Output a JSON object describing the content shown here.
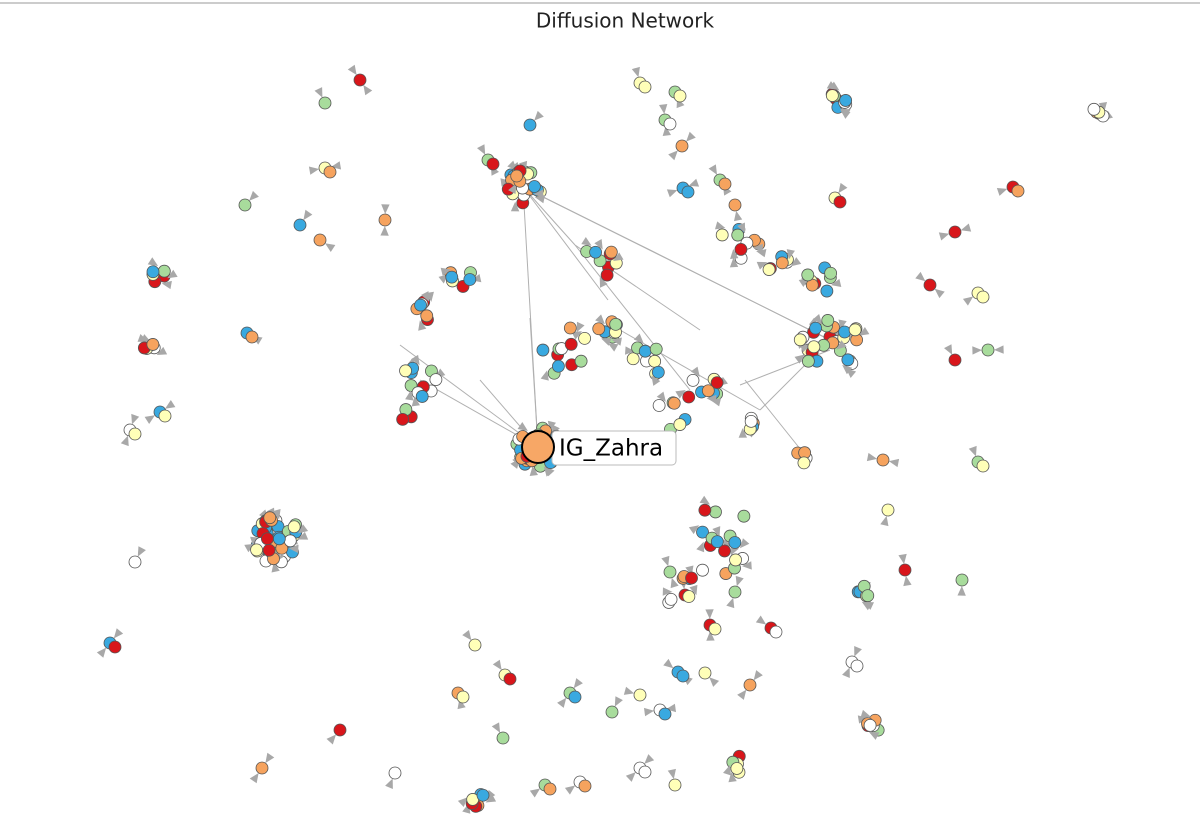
{
  "title": "Diffusion Network",
  "highlighted_node": {
    "label": "IG_Zahra"
  }
}
